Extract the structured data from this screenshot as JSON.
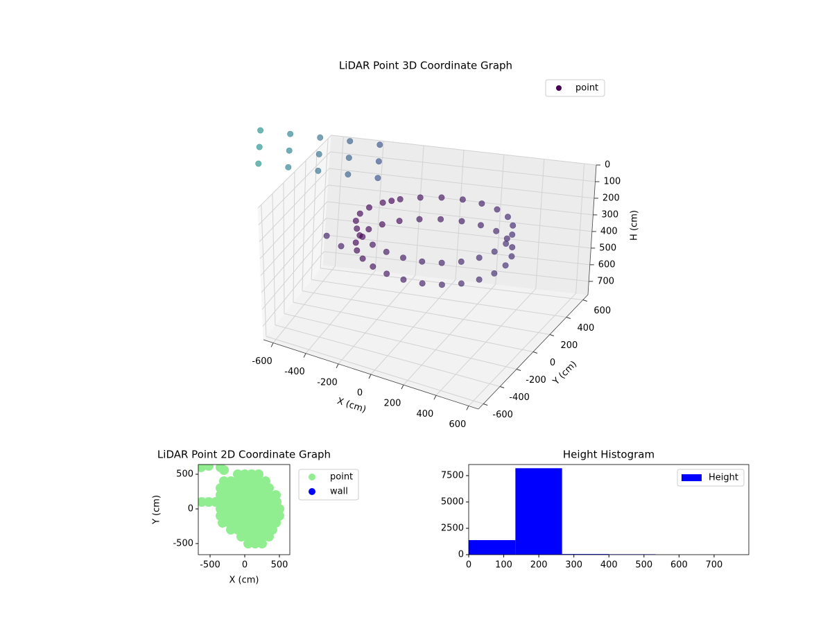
{
  "chart_data": [
    {
      "type": "scatter3d",
      "title": "LiDAR Point 3D Coordinate Graph",
      "xlabel": "X (cm)",
      "ylabel": "Y (cm)",
      "zlabel": "H (cm)",
      "series": [
        {
          "name": "point",
          "x": [
            500,
            486,
            446,
            383,
            300,
            204,
            100,
            -4,
            -100,
            -183,
            -246,
            -286,
            -300,
            -286,
            -246,
            -183,
            -100,
            -4,
            100,
            204,
            300,
            383,
            446,
            486,
            500,
            486,
            446,
            383,
            300,
            204,
            100,
            -4,
            -100,
            -183,
            -246,
            -286,
            -300,
            -286,
            -246,
            -183,
            -100,
            -4,
            100,
            204,
            300,
            383,
            446,
            486,
            -300,
            -450,
            -200,
            -1000,
            -850,
            -700,
            -550,
            -400,
            -1000,
            -850,
            -700,
            -550,
            -400,
            -1000,
            -850,
            -700,
            -550,
            -400
          ],
          "y": [
            0,
            104,
            200,
            283,
            346,
            386,
            400,
            386,
            346,
            283,
            200,
            104,
            0,
            -104,
            -200,
            -283,
            -346,
            -386,
            -400,
            -386,
            -346,
            -283,
            -200,
            -104,
            0,
            104,
            200,
            283,
            346,
            386,
            400,
            386,
            346,
            283,
            200,
            104,
            0,
            -104,
            -200,
            -283,
            -346,
            -386,
            -400,
            -386,
            -346,
            -283,
            -200,
            -104,
            -300,
            -100,
            200,
            600,
            600,
            600,
            600,
            600,
            600,
            600,
            600,
            600,
            600,
            600,
            600,
            600,
            600,
            600
          ],
          "z": [
            170,
            170,
            170,
            170,
            170,
            170,
            170,
            170,
            170,
            170,
            170,
            170,
            170,
            170,
            170,
            170,
            170,
            170,
            170,
            170,
            170,
            170,
            170,
            170,
            300,
            300,
            300,
            300,
            300,
            300,
            300,
            300,
            300,
            300,
            300,
            300,
            300,
            300,
            300,
            300,
            300,
            300,
            300,
            300,
            300,
            300,
            300,
            300,
            250,
            300,
            150,
            0,
            0,
            0,
            0,
            0,
            100,
            100,
            100,
            100,
            100,
            200,
            200,
            200,
            200,
            200
          ]
        }
      ],
      "color_by": "distance",
      "colormap": [
        "#440154",
        "#3b528b",
        "#21918c"
      ],
      "alpha": 0.65,
      "xlim": [
        -660,
        660
      ],
      "ylim": [
        -660,
        660
      ],
      "zlim": [
        0,
        780
      ],
      "zaxis_inverted": true,
      "xticks": [
        -600,
        -400,
        -200,
        0,
        200,
        400,
        600
      ],
      "yticks": [
        -600,
        -400,
        -200,
        0,
        200,
        400,
        600
      ],
      "zticks": [
        0,
        100,
        200,
        300,
        400,
        500,
        600,
        700
      ],
      "grid": true,
      "legend": "upper right"
    },
    {
      "type": "scatter",
      "title": "LiDAR Point 2D Coordinate Graph",
      "xlabel": "X (cm)",
      "ylabel": "Y (cm)",
      "series": [
        {
          "name": "point",
          "color": "#90ee90",
          "x": [
            -100,
            0,
            100,
            200,
            -300,
            -200,
            -100,
            0,
            100,
            200,
            300,
            -350,
            -250,
            -150,
            -50,
            50,
            150,
            250,
            350,
            -350,
            -250,
            -150,
            -50,
            50,
            150,
            250,
            350,
            450,
            -620,
            -520,
            -420,
            -320,
            -220,
            -120,
            -20,
            80,
            180,
            280,
            380,
            460,
            -350,
            -250,
            -150,
            -50,
            50,
            150,
            250,
            350,
            450,
            500,
            -350,
            -250,
            -150,
            -50,
            50,
            150,
            250,
            350,
            450,
            500,
            -320,
            -220,
            -120,
            -20,
            80,
            180,
            280,
            380,
            450,
            -200,
            -100,
            0,
            100,
            200,
            300,
            400,
            -50,
            50,
            150,
            250,
            350,
            50,
            150,
            250,
            -630,
            -520,
            -350,
            -300
          ],
          "values": [
            500,
            500,
            500,
            500,
            400,
            400,
            400,
            400,
            400,
            400,
            400,
            300,
            300,
            300,
            300,
            300,
            300,
            300,
            300,
            200,
            200,
            200,
            200,
            200,
            200,
            200,
            200,
            200,
            100,
            100,
            100,
            100,
            100,
            100,
            100,
            100,
            100,
            100,
            100,
            100,
            0,
            0,
            0,
            0,
            0,
            0,
            0,
            0,
            0,
            0,
            -100,
            -100,
            -100,
            -100,
            -100,
            -100,
            -100,
            -100,
            -100,
            -100,
            -200,
            -200,
            -200,
            -200,
            -200,
            -200,
            -200,
            -200,
            -200,
            -300,
            -300,
            -300,
            -300,
            -300,
            -300,
            -300,
            -400,
            -400,
            -400,
            -400,
            -400,
            -500,
            -500,
            -500,
            600,
            620,
            600,
            560
          ]
        },
        {
          "name": "wall",
          "color": "#0000ff",
          "x": [],
          "values": []
        }
      ],
      "xlim": [
        -670,
        650
      ],
      "ylim": [
        -660,
        640
      ],
      "xticks": [
        -500,
        0,
        500
      ],
      "yticks": [
        -500,
        0,
        500
      ],
      "legend": "outside right"
    },
    {
      "type": "histogram",
      "title": "Height Histogram",
      "name": "Height",
      "color": "#0000ff",
      "bins": [
        0,
        133.2,
        266.3,
        399.5,
        532.7,
        665.8,
        799
      ],
      "values": [
        1380,
        8200,
        60,
        40,
        5,
        3
      ],
      "xlim": [
        0,
        799
      ],
      "ylim": [
        0,
        8550
      ],
      "xticks": [
        0,
        100,
        200,
        300,
        400,
        500,
        600,
        700
      ],
      "yticks": [
        0,
        2500,
        5000,
        7500
      ],
      "legend": "upper right"
    }
  ]
}
